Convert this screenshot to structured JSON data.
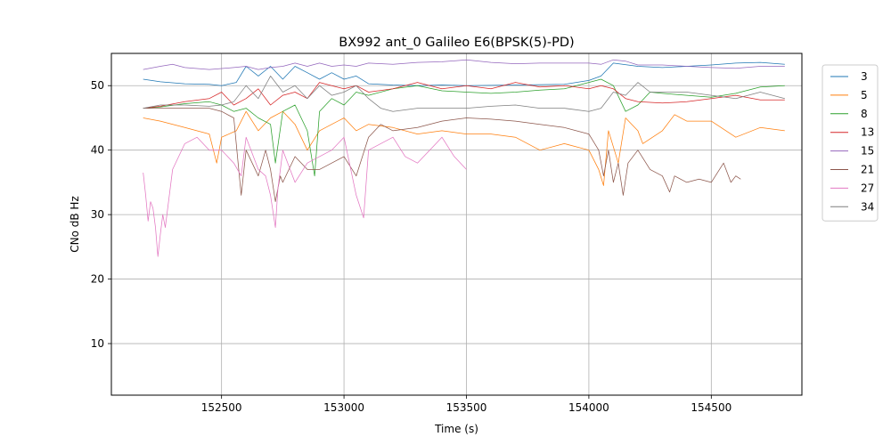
{
  "chart_data": {
    "type": "line",
    "title": "BX992 ant_0 Galileo E6(BPSK(5)-PD)",
    "xlabel": "Time (s)",
    "ylabel": "CNo dB Hz",
    "xlim": [
      152050,
      154870
    ],
    "ylim": [
      2,
      55
    ],
    "xticks": [
      152500,
      153000,
      153500,
      154000,
      154500
    ],
    "yticks": [
      10,
      20,
      30,
      40,
      50
    ],
    "grid": true,
    "legend_position": "outside-right",
    "series": [
      {
        "name": "3",
        "color": "#1f77b4",
        "x": [
          152180,
          152250,
          152350,
          152450,
          152500,
          152560,
          152600,
          152650,
          152700,
          152750,
          152800,
          152850,
          152900,
          152950,
          153000,
          153050,
          153100,
          153200,
          153300,
          153400,
          153500,
          153700,
          153900,
          154000,
          154050,
          154100,
          154200,
          154300,
          154400,
          154500,
          154600,
          154700,
          154800
        ],
        "y": [
          51,
          50.6,
          50.3,
          50.2,
          50,
          50.5,
          53,
          51.5,
          53,
          51,
          53,
          52,
          51,
          52,
          51,
          51.5,
          50.3,
          50.1,
          50,
          50.1,
          50,
          50.1,
          50.2,
          50.8,
          51.5,
          53.5,
          53,
          52.8,
          53,
          53.2,
          53.5,
          53.6,
          53.3
        ]
      },
      {
        "name": "5",
        "color": "#ff7f0e",
        "x": [
          152180,
          152250,
          152350,
          152450,
          152480,
          152500,
          152560,
          152600,
          152650,
          152700,
          152750,
          152800,
          152850,
          152900,
          152950,
          153000,
          153050,
          153100,
          153200,
          153300,
          153400,
          153500,
          153600,
          153700,
          153800,
          153900,
          154000,
          154040,
          154060,
          154080,
          154120,
          154150,
          154200,
          154220,
          154300,
          154350,
          154400,
          154500,
          154600,
          154700,
          154800
        ],
        "y": [
          45,
          44.5,
          43.5,
          42.5,
          38,
          42,
          43,
          46,
          43,
          45,
          46,
          44,
          40,
          43,
          44,
          45,
          43,
          44,
          43.5,
          42.5,
          43,
          42.5,
          42.5,
          42,
          40,
          41,
          40,
          37,
          34.5,
          43,
          38,
          45,
          43,
          41,
          43,
          45.5,
          44.5,
          44.5,
          42,
          43.5,
          43
        ]
      },
      {
        "name": "8",
        "color": "#2ca02c",
        "x": [
          152180,
          152250,
          152350,
          152450,
          152500,
          152550,
          152600,
          152650,
          152700,
          152720,
          152750,
          152800,
          152850,
          152880,
          152900,
          152950,
          153000,
          153050,
          153100,
          153200,
          153300,
          153400,
          153500,
          153600,
          153700,
          153800,
          153900,
          154000,
          154050,
          154100,
          154150,
          154200,
          154250,
          154300,
          154400,
          154500,
          154600,
          154700,
          154800
        ],
        "y": [
          46.5,
          46.7,
          47.2,
          47.5,
          47,
          46,
          46.5,
          45,
          44,
          38,
          46,
          47,
          43,
          36,
          46,
          48,
          47,
          49,
          48.5,
          49.5,
          50,
          49.2,
          49,
          48.8,
          49,
          49.3,
          49.5,
          50.5,
          51,
          50,
          46,
          47,
          49,
          48.8,
          48.5,
          48.2,
          48.8,
          49.8,
          50
        ]
      },
      {
        "name": "13",
        "color": "#d62728",
        "x": [
          152180,
          152250,
          152350,
          152450,
          152500,
          152550,
          152600,
          152650,
          152700,
          152750,
          152800,
          152850,
          152900,
          152950,
          153000,
          153050,
          153100,
          153200,
          153300,
          153400,
          153500,
          153600,
          153700,
          153800,
          153900,
          154000,
          154050,
          154100,
          154150,
          154200,
          154300,
          154400,
          154500,
          154600,
          154700,
          154800
        ],
        "y": [
          46.5,
          46.8,
          47.5,
          48,
          49,
          47,
          48,
          49.5,
          47,
          48.5,
          49,
          48,
          50.5,
          50,
          49.5,
          50,
          49,
          49.5,
          50.5,
          49.5,
          50,
          49.5,
          50.5,
          49.8,
          50,
          49.5,
          50,
          49.5,
          48,
          47.5,
          47.3,
          47.5,
          48,
          48.5,
          47.8,
          47.8
        ]
      },
      {
        "name": "15",
        "color": "#9467bd",
        "x": [
          152180,
          152250,
          152300,
          152350,
          152450,
          152550,
          152600,
          152650,
          152700,
          152750,
          152800,
          152850,
          152900,
          152950,
          153000,
          153050,
          153100,
          153200,
          153300,
          153400,
          153500,
          153600,
          153700,
          153800,
          153900,
          154000,
          154050,
          154100,
          154150,
          154200,
          154300,
          154400,
          154500,
          154600,
          154700,
          154800
        ],
        "y": [
          52.5,
          53,
          53.3,
          52.8,
          52.5,
          52.8,
          53,
          52.5,
          52.8,
          53,
          53.5,
          53,
          53.5,
          53,
          53.2,
          53,
          53.5,
          53.3,
          53.6,
          53.7,
          54,
          53.6,
          53.4,
          53.5,
          53.5,
          53.5,
          53.3,
          54,
          53.8,
          53.2,
          53.2,
          53,
          52.8,
          52.7,
          53,
          53
        ]
      },
      {
        "name": "21",
        "color": "#8c564b",
        "x": [
          152180,
          152250,
          152350,
          152450,
          152500,
          152550,
          152580,
          152600,
          152650,
          152680,
          152700,
          152720,
          152740,
          152750,
          152800,
          152850,
          152900,
          152950,
          153000,
          153050,
          153100,
          153150,
          153200,
          153300,
          153400,
          153500,
          153600,
          153700,
          153800,
          153900,
          154000,
          154040,
          154060,
          154080,
          154100,
          154120,
          154140,
          154160,
          154200,
          154250,
          154300,
          154330,
          154350,
          154400,
          154450,
          154500,
          154550,
          154580,
          154600,
          154620
        ],
        "y": [
          46.5,
          46.5,
          46.5,
          46.5,
          46,
          45,
          33,
          40,
          36,
          40,
          37,
          32,
          36,
          35,
          39,
          37,
          37,
          38,
          39,
          36,
          42,
          44,
          43,
          43.5,
          44.5,
          45,
          44.8,
          44.5,
          44,
          43.5,
          42.5,
          40,
          36,
          40,
          35,
          38,
          33,
          38,
          40,
          37,
          36,
          33.5,
          36,
          35,
          35.5,
          35,
          38,
          35,
          36,
          35.5
        ]
      },
      {
        "name": "27",
        "color": "#e377c2",
        "x": [
          152180,
          152190,
          152200,
          152210,
          152220,
          152230,
          152240,
          152250,
          152260,
          152270,
          152300,
          152350,
          152400,
          152450,
          152500,
          152550,
          152580,
          152600,
          152650,
          152680,
          152700,
          152720,
          152730,
          152750,
          152800,
          152850,
          152900,
          152950,
          153000,
          153050,
          153080,
          153100,
          153150,
          153200,
          153250,
          153300,
          153350,
          153400,
          153450,
          153500
        ],
        "y": [
          36.5,
          33,
          29,
          32,
          31,
          28,
          23.5,
          27,
          30,
          28,
          37,
          41,
          42,
          40,
          40,
          38,
          36,
          42,
          37,
          36,
          33,
          28,
          34,
          40,
          35,
          38,
          39,
          40,
          42,
          33,
          29.5,
          40,
          41,
          42,
          39,
          38,
          40,
          42,
          39,
          37
        ]
      },
      {
        "name": "34",
        "color": "#7f7f7f",
        "x": [
          152180,
          152250,
          152350,
          152450,
          152500,
          152550,
          152600,
          152650,
          152700,
          152750,
          152800,
          152850,
          152900,
          152950,
          153000,
          153050,
          153100,
          153150,
          153200,
          153300,
          153400,
          153500,
          153600,
          153700,
          153800,
          153900,
          154000,
          154050,
          154100,
          154150,
          154200,
          154250,
          154300,
          154400,
          154500,
          154600,
          154700,
          154800
        ],
        "y": [
          46.5,
          47,
          47,
          46.8,
          47,
          47.5,
          50,
          48,
          51.5,
          49,
          50,
          48,
          50,
          48.5,
          49,
          50,
          48,
          46.5,
          46,
          46.5,
          46.5,
          46.5,
          46.8,
          47,
          46.5,
          46.5,
          46,
          46.5,
          49,
          48.5,
          50.5,
          49,
          49,
          49,
          48.5,
          48,
          49,
          48
        ]
      }
    ]
  }
}
